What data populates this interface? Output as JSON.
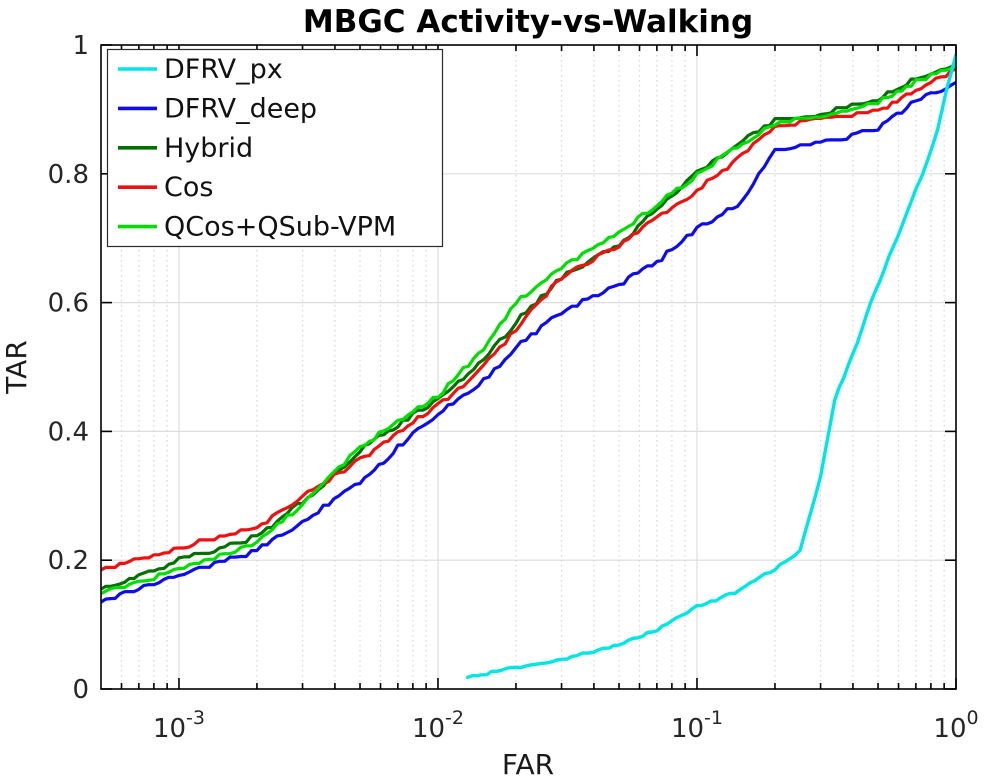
{
  "title": "MBGC Activity-vs-Walking",
  "x_axis": {
    "label": "FAR",
    "scale": "log",
    "min": 0.0005,
    "max": 1,
    "tick_exponents": [
      -3,
      -2,
      -1,
      0
    ],
    "tick_base": "10"
  },
  "y_axis": {
    "label": "TAR",
    "min": 0,
    "max": 1,
    "tick_values": [
      0,
      0.2,
      0.4,
      0.6,
      0.8,
      1
    ],
    "tick_labels": [
      "0",
      "0.2",
      "0.4",
      "0.6",
      "0.8",
      "1"
    ]
  },
  "legend": {
    "position": "top-left",
    "entries": [
      "DFRV_px",
      "DFRV_deep",
      "Hybrid",
      "Cos",
      "QCos+QSub-VPM"
    ]
  },
  "style_colors": {
    "grid_minor": "#d6d6d6",
    "grid_major": "#dedede",
    "axis": "#000000",
    "legend_border": "#2b2b2b",
    "background": "#ffffff"
  },
  "chart_data": {
    "type": "line",
    "title": "MBGC Activity-vs-Walking",
    "xlabel": "FAR",
    "ylabel": "TAR",
    "x_scale": "log",
    "xlim": [
      0.0005,
      1
    ],
    "ylim": [
      0,
      1
    ],
    "grid": true,
    "legend_position": "top-left",
    "series": [
      {
        "name": "DFRV_px",
        "color": "#00E5E5",
        "points": [
          [
            0.013,
            0.018
          ],
          [
            0.02,
            0.033
          ],
          [
            0.03,
            0.046
          ],
          [
            0.05,
            0.068
          ],
          [
            0.07,
            0.092
          ],
          [
            0.1,
            0.128
          ],
          [
            0.14,
            0.15
          ],
          [
            0.2,
            0.186
          ],
          [
            0.25,
            0.215
          ],
          [
            0.3,
            0.33
          ],
          [
            0.34,
            0.45
          ],
          [
            0.4,
            0.52
          ],
          [
            0.47,
            0.6
          ],
          [
            0.55,
            0.67
          ],
          [
            0.62,
            0.72
          ],
          [
            0.7,
            0.775
          ],
          [
            0.78,
            0.822
          ],
          [
            0.85,
            0.87
          ],
          [
            0.92,
            0.93
          ],
          [
            1.0,
            0.985
          ]
        ]
      },
      {
        "name": "DFRV_deep",
        "color": "#0D0DEB",
        "points": [
          [
            0.0005,
            0.135
          ],
          [
            0.0007,
            0.155
          ],
          [
            0.001,
            0.177
          ],
          [
            0.0015,
            0.198
          ],
          [
            0.002,
            0.215
          ],
          [
            0.003,
            0.26
          ],
          [
            0.005,
            0.32
          ],
          [
            0.007,
            0.375
          ],
          [
            0.01,
            0.428
          ],
          [
            0.015,
            0.48
          ],
          [
            0.02,
            0.53
          ],
          [
            0.03,
            0.585
          ],
          [
            0.05,
            0.628
          ],
          [
            0.07,
            0.663
          ],
          [
            0.1,
            0.715
          ],
          [
            0.15,
            0.757
          ],
          [
            0.2,
            0.836
          ],
          [
            0.3,
            0.848
          ],
          [
            0.5,
            0.869
          ],
          [
            0.7,
            0.913
          ],
          [
            1.0,
            0.942
          ]
        ]
      },
      {
        "name": "Hybrid",
        "color": "#007000",
        "points": [
          [
            0.0005,
            0.155
          ],
          [
            0.0007,
            0.175
          ],
          [
            0.001,
            0.2
          ],
          [
            0.0015,
            0.22
          ],
          [
            0.002,
            0.237
          ],
          [
            0.003,
            0.29
          ],
          [
            0.005,
            0.37
          ],
          [
            0.007,
            0.41
          ],
          [
            0.01,
            0.45
          ],
          [
            0.015,
            0.51
          ],
          [
            0.02,
            0.57
          ],
          [
            0.03,
            0.64
          ],
          [
            0.05,
            0.69
          ],
          [
            0.07,
            0.745
          ],
          [
            0.1,
            0.8
          ],
          [
            0.15,
            0.85
          ],
          [
            0.2,
            0.884
          ],
          [
            0.3,
            0.893
          ],
          [
            0.5,
            0.916
          ],
          [
            0.7,
            0.947
          ],
          [
            1.0,
            0.97
          ]
        ]
      },
      {
        "name": "Cos",
        "color": "#EE1111",
        "points": [
          [
            0.0005,
            0.185
          ],
          [
            0.0007,
            0.2
          ],
          [
            0.001,
            0.22
          ],
          [
            0.0015,
            0.237
          ],
          [
            0.002,
            0.25
          ],
          [
            0.003,
            0.3
          ],
          [
            0.005,
            0.355
          ],
          [
            0.007,
            0.4
          ],
          [
            0.01,
            0.44
          ],
          [
            0.015,
            0.5
          ],
          [
            0.02,
            0.558
          ],
          [
            0.03,
            0.64
          ],
          [
            0.05,
            0.69
          ],
          [
            0.07,
            0.73
          ],
          [
            0.1,
            0.775
          ],
          [
            0.15,
            0.828
          ],
          [
            0.2,
            0.874
          ],
          [
            0.3,
            0.884
          ],
          [
            0.5,
            0.897
          ],
          [
            0.7,
            0.928
          ],
          [
            1.0,
            0.962
          ]
        ]
      },
      {
        "name": "QCos+QSub-VPM",
        "color": "#00DE00",
        "points": [
          [
            0.0005,
            0.148
          ],
          [
            0.0007,
            0.165
          ],
          [
            0.001,
            0.185
          ],
          [
            0.0015,
            0.208
          ],
          [
            0.002,
            0.228
          ],
          [
            0.003,
            0.285
          ],
          [
            0.005,
            0.375
          ],
          [
            0.007,
            0.415
          ],
          [
            0.01,
            0.455
          ],
          [
            0.015,
            0.53
          ],
          [
            0.02,
            0.6
          ],
          [
            0.03,
            0.655
          ],
          [
            0.05,
            0.707
          ],
          [
            0.07,
            0.752
          ],
          [
            0.1,
            0.798
          ],
          [
            0.15,
            0.848
          ],
          [
            0.2,
            0.878
          ],
          [
            0.3,
            0.888
          ],
          [
            0.5,
            0.911
          ],
          [
            0.7,
            0.943
          ],
          [
            1.0,
            0.968
          ]
        ]
      }
    ]
  }
}
